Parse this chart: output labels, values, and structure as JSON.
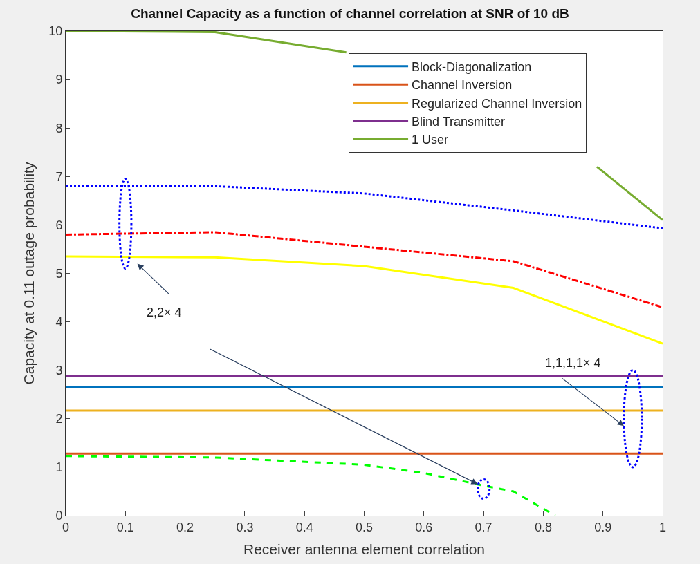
{
  "chart_data": {
    "type": "line",
    "title": "Channel Capacity as a function of channel correlation at SNR of 10 dB",
    "xlabel": "Receiver antenna element correlation",
    "ylabel": "Capacity at 0.11 outage probability",
    "x": [
      0,
      0.25,
      0.5,
      0.75,
      1
    ],
    "series": [
      {
        "name": "Block-Diagonalization",
        "color": "#0072bd",
        "values": [
          2.65,
          2.65,
          2.65,
          2.65,
          2.65
        ]
      },
      {
        "name": "Channel Inversion",
        "color": "#d95319",
        "values": [
          1.28,
          1.28,
          1.28,
          1.28,
          1.28
        ]
      },
      {
        "name": "Regularized Channel Inversion",
        "color": "#edb120",
        "values": [
          2.17,
          2.17,
          2.17,
          2.17,
          2.17
        ]
      },
      {
        "name": "Blind Transmitter",
        "color": "#7e2f8e",
        "values": [
          2.88,
          2.88,
          2.88,
          2.88,
          2.88
        ]
      },
      {
        "name": "1 User",
        "color": "#77ac30",
        "x": [
          0,
          0.25,
          0.47,
          0.68,
          0.89,
          1
        ],
        "values": [
          10,
          9.98,
          9.56,
          null,
          7.2,
          6.1
        ]
      },
      {
        "color": "#0000ff",
        "line_style": "dotted",
        "values": [
          6.8,
          6.8,
          6.65,
          6.3,
          5.93
        ]
      },
      {
        "color": "#ff0000",
        "line_style": "dashdot",
        "values": [
          5.8,
          5.85,
          5.55,
          5.25,
          4.3
        ]
      },
      {
        "color": "#ffff00",
        "values": [
          5.35,
          5.33,
          5.15,
          4.7,
          3.55
        ]
      },
      {
        "color": "#00ff00",
        "line_style": "dashed",
        "x": [
          0,
          0.25,
          0.5,
          0.6,
          0.7,
          0.75,
          0.82
        ],
        "values": [
          1.23,
          1.2,
          1.05,
          0.88,
          0.62,
          0.5,
          0
        ]
      }
    ],
    "xlim": [
      0,
      1
    ],
    "xticks": [
      0,
      0.1,
      0.2,
      0.3,
      0.4,
      0.5,
      0.6,
      0.7,
      0.8,
      0.9,
      1
    ],
    "ylim": [
      0,
      10
    ],
    "yticks": [
      0,
      1,
      2,
      3,
      4,
      5,
      6,
      7,
      8,
      9,
      10
    ],
    "annotations": [
      "2,2× 4",
      "1,1,1,1× 4"
    ],
    "legend": "top right",
    "line_style": "solid"
  }
}
